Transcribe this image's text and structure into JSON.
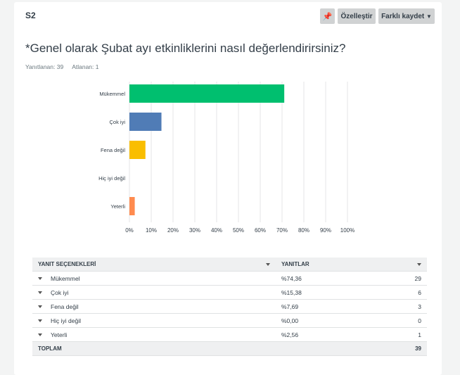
{
  "question": {
    "number": "S2",
    "title": "*Genel olarak Şubat ayı etkinliklerini nasıl değerlendirirsiniz?",
    "answered": "Yanıtlanan: 39",
    "skipped": "Atlanan: 1"
  },
  "toolbar": {
    "pin_icon": "pin-icon",
    "customize": "Özelleştir",
    "save_as": "Farklı kaydet"
  },
  "chart_data": {
    "type": "bar",
    "orientation": "horizontal",
    "categories": [
      "Mükemmel",
      "Çok iyi",
      "Fena değil",
      "Hiç iyi değil",
      "Yeterli"
    ],
    "values": [
      74.36,
      15.38,
      7.69,
      0,
      2.56
    ],
    "colors": [
      "#00bf6f",
      "#507cb6",
      "#f9be00",
      "#6bc8cd",
      "#ff8b4f"
    ],
    "xlim": [
      0,
      100
    ],
    "xticks": [
      "0%",
      "10%",
      "20%",
      "30%",
      "40%",
      "50%",
      "60%",
      "70%",
      "80%",
      "90%",
      "100%"
    ],
    "grid": true
  },
  "table": {
    "headers": [
      "YANIT SEÇENEKLERİ",
      "YANITLAR"
    ],
    "rows": [
      {
        "label": "Mükemmel",
        "percent": "%74,36",
        "count": "29"
      },
      {
        "label": "Çok iyi",
        "percent": "%15,38",
        "count": "6"
      },
      {
        "label": "Fena değil",
        "percent": "%7,69",
        "count": "3"
      },
      {
        "label": "Hiç iyi değil",
        "percent": "%0,00",
        "count": "0"
      },
      {
        "label": "Yeterli",
        "percent": "%2,56",
        "count": "1"
      }
    ],
    "total_label": "TOPLAM",
    "total": "39"
  }
}
